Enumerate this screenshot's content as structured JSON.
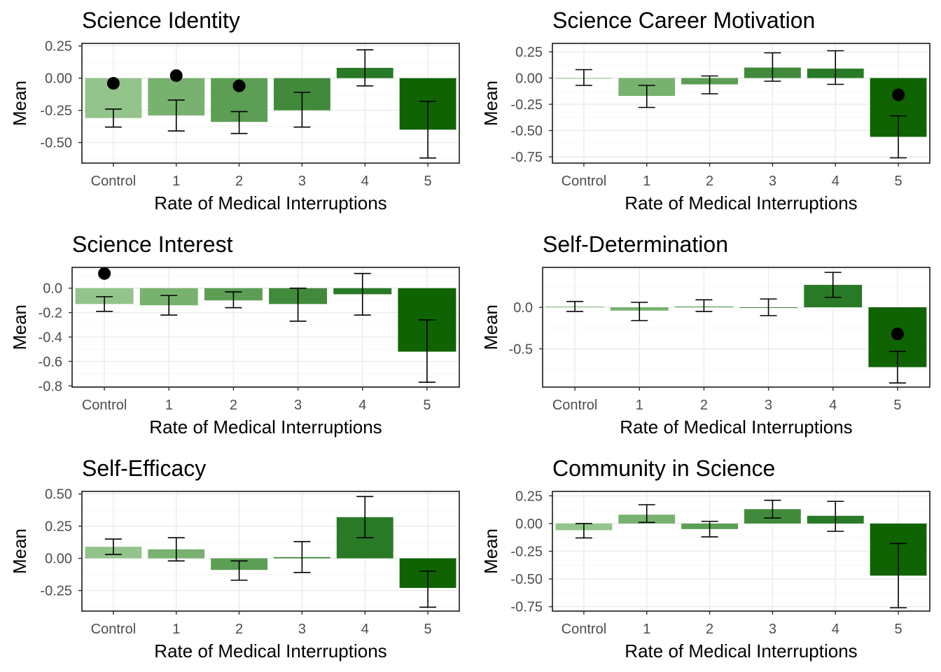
{
  "chart_data": [
    {
      "type": "bar",
      "title": "Science Identity",
      "xlabel": "Rate of Medical Interruptions",
      "ylabel": "Mean",
      "categories": [
        "Control",
        "1",
        "2",
        "3",
        "4",
        "5"
      ],
      "values": [
        -0.31,
        -0.29,
        -0.34,
        -0.25,
        0.08,
        -0.4
      ],
      "error_low": [
        -0.38,
        -0.41,
        -0.43,
        -0.38,
        -0.06,
        -0.62
      ],
      "error_high": [
        -0.24,
        -0.17,
        -0.26,
        -0.11,
        0.22,
        -0.18
      ],
      "points": [
        -0.04,
        0.02,
        -0.06,
        null,
        null,
        null
      ],
      "ylim": [
        -0.66,
        0.27
      ],
      "yticks": [
        -0.5,
        -0.25,
        0.0,
        0.25
      ],
      "ytick_labels": [
        "-0.50",
        "-0.25",
        "0.00",
        "0.25"
      ]
    },
    {
      "type": "bar",
      "title": "Science Career Motivation",
      "xlabel": "Rate of Medical Interruptions",
      "ylabel": "Mean",
      "categories": [
        "Control",
        "1",
        "2",
        "3",
        "4",
        "5"
      ],
      "values": [
        0.0,
        -0.17,
        -0.06,
        0.1,
        0.09,
        -0.56
      ],
      "error_low": [
        -0.07,
        -0.28,
        -0.15,
        -0.03,
        -0.06,
        -0.76
      ],
      "error_high": [
        0.08,
        -0.07,
        0.02,
        0.24,
        0.26,
        -0.36
      ],
      "points": [
        null,
        null,
        null,
        null,
        null,
        -0.16
      ],
      "ylim": [
        -0.81,
        0.33
      ],
      "yticks": [
        -0.75,
        -0.5,
        -0.25,
        0.0,
        0.25
      ],
      "ytick_labels": [
        "-0.75",
        "-0.50",
        "-0.25",
        "0.00",
        "0.25"
      ]
    },
    {
      "type": "bar",
      "title": "Science Interest",
      "xlabel": "Rate of Medical Interruptions",
      "ylabel": "Mean",
      "categories": [
        "Control",
        "1",
        "2",
        "3",
        "4",
        "5"
      ],
      "values": [
        -0.13,
        -0.14,
        -0.1,
        -0.13,
        -0.05,
        -0.52
      ],
      "error_low": [
        -0.19,
        -0.22,
        -0.16,
        -0.27,
        -0.22,
        -0.77
      ],
      "error_high": [
        -0.07,
        -0.06,
        -0.03,
        0.0,
        0.12,
        -0.26
      ],
      "points": [
        0.12,
        null,
        null,
        null,
        null,
        null
      ],
      "ylim": [
        -0.81,
        0.17
      ],
      "yticks": [
        -0.8,
        -0.6,
        -0.4,
        -0.2,
        0.0
      ],
      "ytick_labels": [
        "-0.8",
        "-0.6",
        "-0.4",
        "-0.2",
        "0.0"
      ]
    },
    {
      "type": "bar",
      "title": "Self-Determination",
      "xlabel": "Rate of Medical Interruptions",
      "ylabel": "Mean",
      "categories": [
        "Control",
        "1",
        "2",
        "3",
        "4",
        "5"
      ],
      "values": [
        0.01,
        -0.04,
        0.01,
        0.0,
        0.27,
        -0.72
      ],
      "error_low": [
        -0.05,
        -0.16,
        -0.05,
        -0.1,
        0.12,
        -0.91
      ],
      "error_high": [
        0.07,
        0.06,
        0.09,
        0.1,
        0.42,
        -0.53
      ],
      "points": [
        null,
        null,
        null,
        null,
        null,
        -0.32
      ],
      "ylim": [
        -0.96,
        0.48
      ],
      "yticks": [
        -0.5,
        0.0
      ],
      "ytick_labels": [
        "-0.5",
        "0.0"
      ]
    },
    {
      "type": "bar",
      "title": "Self-Efficacy",
      "xlabel": "Rate of Medical Interruptions",
      "ylabel": "Mean",
      "categories": [
        "Control",
        "1",
        "2",
        "3",
        "4",
        "5"
      ],
      "values": [
        0.09,
        0.07,
        -0.09,
        0.01,
        0.32,
        -0.23
      ],
      "error_low": [
        0.03,
        -0.02,
        -0.17,
        -0.11,
        0.16,
        -0.38
      ],
      "error_high": [
        0.15,
        0.16,
        -0.02,
        0.13,
        0.48,
        -0.1
      ],
      "points": [
        null,
        null,
        null,
        null,
        null,
        null
      ],
      "ylim": [
        -0.41,
        0.52
      ],
      "yticks": [
        -0.25,
        0.0,
        0.25,
        0.5
      ],
      "ytick_labels": [
        "-0.25",
        "0.00",
        "0.25",
        "0.50"
      ]
    },
    {
      "type": "bar",
      "title": "Community in Science",
      "xlabel": "Rate of Medical Interruptions",
      "ylabel": "Mean",
      "categories": [
        "Control",
        "1",
        "2",
        "3",
        "4",
        "5"
      ],
      "values": [
        -0.06,
        0.08,
        -0.05,
        0.13,
        0.07,
        -0.47
      ],
      "error_low": [
        -0.13,
        0.01,
        -0.12,
        0.05,
        -0.07,
        -0.76
      ],
      "error_high": [
        0.0,
        0.17,
        0.02,
        0.21,
        0.2,
        -0.18
      ],
      "points": [
        null,
        null,
        null,
        null,
        null,
        null
      ],
      "ylim": [
        -0.79,
        0.29
      ],
      "yticks": [
        -0.75,
        -0.5,
        -0.25,
        0.0,
        0.25
      ],
      "ytick_labels": [
        "-0.75",
        "-0.50",
        "-0.25",
        "0.00",
        "0.25"
      ]
    }
  ],
  "colors": {
    "bars": [
      "#93c48b",
      "#78b26f",
      "#5b9e54",
      "#418a3b",
      "#297a26",
      "#0f6300"
    ],
    "point": "#000000",
    "error_bar": "#000000"
  }
}
